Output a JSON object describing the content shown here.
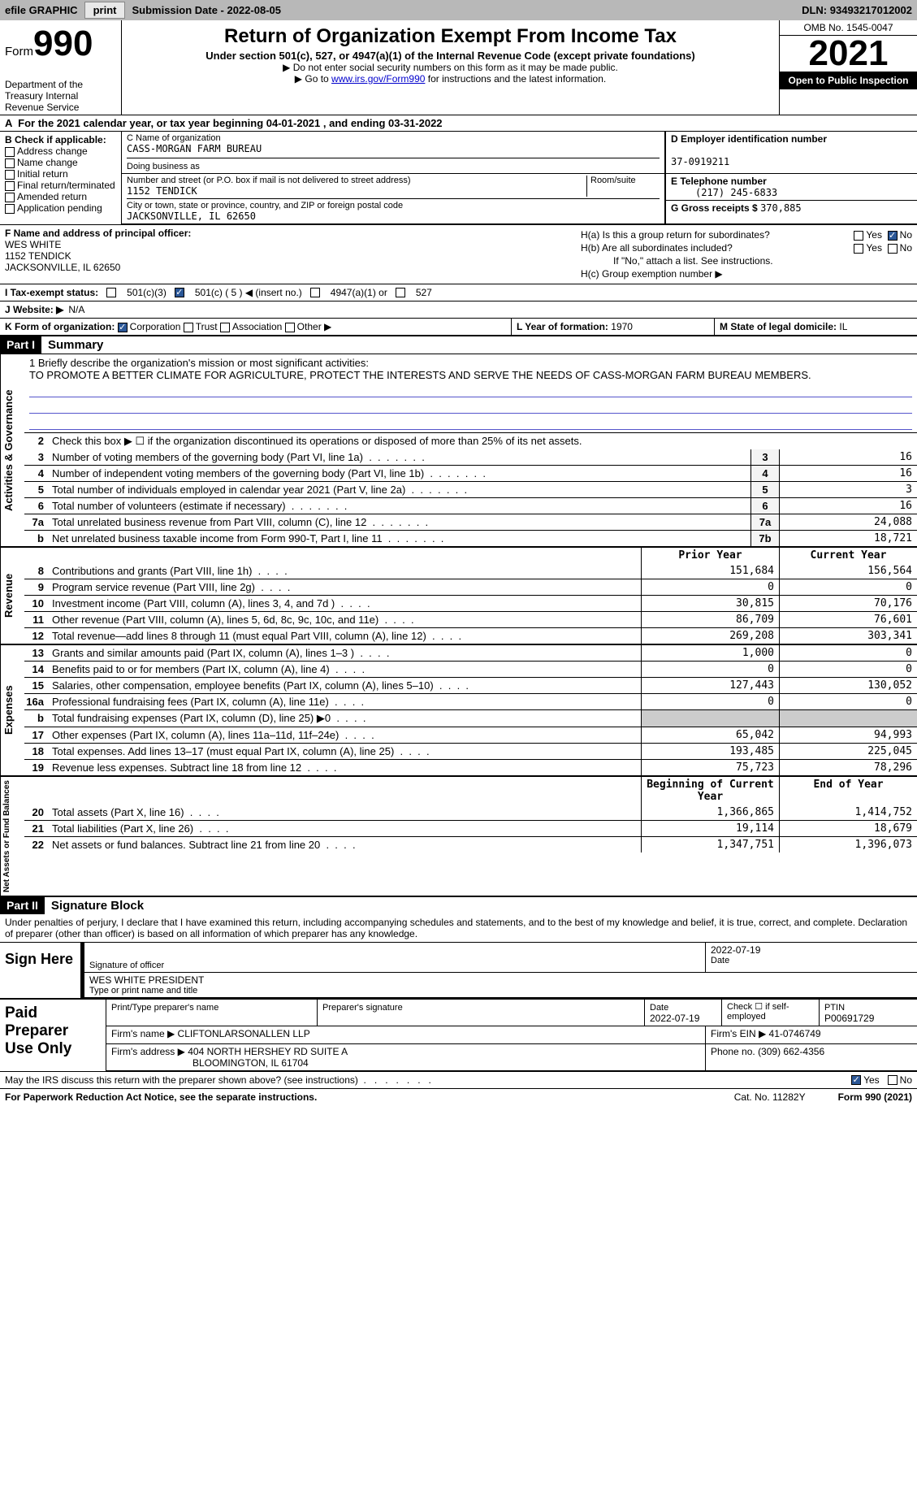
{
  "topbar": {
    "efile": "efile GRAPHIC",
    "print": "print",
    "submission_label": "Submission Date -",
    "submission_date": "2022-08-05",
    "dln_label": "DLN:",
    "dln": "93493217012002"
  },
  "header": {
    "form_word": "Form",
    "form_number": "990",
    "dept": "Department of the Treasury\nInternal Revenue Service",
    "title": "Return of Organization Exempt From Income Tax",
    "subtitle": "Under section 501(c), 527, or 4947(a)(1) of the Internal Revenue Code (except private foundations)",
    "note1": "▶ Do not enter social security numbers on this form as it may be made public.",
    "note2_pre": "▶ Go to ",
    "note2_link": "www.irs.gov/Form990",
    "note2_post": " for instructions and the latest information.",
    "omb": "OMB No. 1545-0047",
    "year": "2021",
    "inspect": "Open to Public Inspection"
  },
  "period": "For the 2021 calendar year, or tax year beginning 04-01-2021    , and ending 03-31-2022",
  "box_b": {
    "label": "B Check if applicable:",
    "items": [
      "Address change",
      "Name change",
      "Initial return",
      "Final return/terminated",
      "Amended return",
      "Application pending"
    ]
  },
  "box_c": {
    "name_label": "C Name of organization",
    "name": "CASS-MORGAN FARM BUREAU",
    "dba_label": "Doing business as",
    "dba": "",
    "street_label": "Number and street (or P.O. box if mail is not delivered to street address)",
    "room_label": "Room/suite",
    "street": "1152 TENDICK",
    "city_label": "City or town, state or province, country, and ZIP or foreign postal code",
    "city": "JACKSONVILLE, IL   62650"
  },
  "box_d": {
    "label": "D Employer identification number",
    "value": "37-0919211"
  },
  "box_e": {
    "label": "E Telephone number",
    "value": "(217) 245-6833"
  },
  "box_g": {
    "label": "G Gross receipts $",
    "value": "370,885"
  },
  "box_f": {
    "label": "F  Name and address of principal officer:",
    "name": "WES WHITE",
    "street": "1152 TENDICK",
    "city": "JACKSONVILLE, IL   62650"
  },
  "box_h": {
    "a_label": "H(a)  Is this a group return for subordinates?",
    "a_yes": false,
    "a_no": true,
    "b_label": "H(b)  Are all subordinates included?",
    "b_note": "If \"No,\" attach a list. See instructions.",
    "c_label": "H(c)  Group exemption number ▶"
  },
  "row_i": {
    "label": "I   Tax-exempt status:",
    "opts": [
      "501(c)(3)",
      "501(c) ( 5 ) ◀ (insert no.)",
      "4947(a)(1) or",
      "527"
    ],
    "checked": 1
  },
  "row_j": {
    "label": "J   Website: ▶",
    "value": "N/A"
  },
  "row_k": {
    "k_label": "K Form of organization:",
    "opts": [
      "Corporation",
      "Trust",
      "Association",
      "Other ▶"
    ],
    "checked": 0,
    "l_label": "L Year of formation:",
    "l_value": "1970",
    "m_label": "M State of legal domicile:",
    "m_value": "IL"
  },
  "part1": {
    "num": "Part I",
    "title": "Summary"
  },
  "mission": {
    "q": "1   Briefly describe the organization's mission or most significant activities:",
    "text": "TO PROMOTE A BETTER CLIMATE FOR AGRICULTURE, PROTECT THE INTERESTS AND SERVE THE NEEDS OF CASS-MORGAN FARM BUREAU MEMBERS."
  },
  "line2": "Check this box ▶ ☐  if the organization discontinued its operations or disposed of more than 25% of its net assets.",
  "governance": [
    {
      "n": "3",
      "d": "Number of voting members of the governing body (Part VI, line 1a)",
      "c": "3",
      "v": "16"
    },
    {
      "n": "4",
      "d": "Number of independent voting members of the governing body (Part VI, line 1b)",
      "c": "4",
      "v": "16"
    },
    {
      "n": "5",
      "d": "Total number of individuals employed in calendar year 2021 (Part V, line 2a)",
      "c": "5",
      "v": "3"
    },
    {
      "n": "6",
      "d": "Total number of volunteers (estimate if necessary)",
      "c": "6",
      "v": "16"
    },
    {
      "n": "7a",
      "d": "Total unrelated business revenue from Part VIII, column (C), line 12",
      "c": "7a",
      "v": "24,088"
    },
    {
      "n": "b",
      "d": "Net unrelated business taxable income from Form 990-T, Part I, line 11",
      "c": "7b",
      "v": "18,721"
    }
  ],
  "revenue_hdr": {
    "prior": "Prior Year",
    "current": "Current Year"
  },
  "revenue": [
    {
      "n": "8",
      "d": "Contributions and grants (Part VIII, line 1h)",
      "p": "151,684",
      "v": "156,564"
    },
    {
      "n": "9",
      "d": "Program service revenue (Part VIII, line 2g)",
      "p": "0",
      "v": "0"
    },
    {
      "n": "10",
      "d": "Investment income (Part VIII, column (A), lines 3, 4, and 7d )",
      "p": "30,815",
      "v": "70,176"
    },
    {
      "n": "11",
      "d": "Other revenue (Part VIII, column (A), lines 5, 6d, 8c, 9c, 10c, and 11e)",
      "p": "86,709",
      "v": "76,601"
    },
    {
      "n": "12",
      "d": "Total revenue—add lines 8 through 11 (must equal Part VIII, column (A), line 12)",
      "p": "269,208",
      "v": "303,341"
    }
  ],
  "expenses": [
    {
      "n": "13",
      "d": "Grants and similar amounts paid (Part IX, column (A), lines 1–3 )",
      "p": "1,000",
      "v": "0"
    },
    {
      "n": "14",
      "d": "Benefits paid to or for members (Part IX, column (A), line 4)",
      "p": "0",
      "v": "0"
    },
    {
      "n": "15",
      "d": "Salaries, other compensation, employee benefits (Part IX, column (A), lines 5–10)",
      "p": "127,443",
      "v": "130,052"
    },
    {
      "n": "16a",
      "d": "Professional fundraising fees (Part IX, column (A), line 11e)",
      "p": "0",
      "v": "0"
    },
    {
      "n": "b",
      "d": "Total fundraising expenses (Part IX, column (D), line 25) ▶0",
      "p": "SHADE",
      "v": "SHADE"
    },
    {
      "n": "17",
      "d": "Other expenses (Part IX, column (A), lines 11a–11d, 11f–24e)",
      "p": "65,042",
      "v": "94,993"
    },
    {
      "n": "18",
      "d": "Total expenses. Add lines 13–17 (must equal Part IX, column (A), line 25)",
      "p": "193,485",
      "v": "225,045"
    },
    {
      "n": "19",
      "d": "Revenue less expenses. Subtract line 18 from line 12",
      "p": "75,723",
      "v": "78,296"
    }
  ],
  "netassets_hdr": {
    "prior": "Beginning of Current Year",
    "current": "End of Year"
  },
  "netassets": [
    {
      "n": "20",
      "d": "Total assets (Part X, line 16)",
      "p": "1,366,865",
      "v": "1,414,752"
    },
    {
      "n": "21",
      "d": "Total liabilities (Part X, line 26)",
      "p": "19,114",
      "v": "18,679"
    },
    {
      "n": "22",
      "d": "Net assets or fund balances. Subtract line 21 from line 20",
      "p": "1,347,751",
      "v": "1,396,073"
    }
  ],
  "vlabels": {
    "gov": "Activities & Governance",
    "rev": "Revenue",
    "exp": "Expenses",
    "net": "Net Assets or Fund Balances"
  },
  "part2": {
    "num": "Part II",
    "title": "Signature Block"
  },
  "decl": "Under penalties of perjury, I declare that I have examined this return, including accompanying schedules and statements, and to the best of my knowledge and belief, it is true, correct, and complete. Declaration of preparer (other than officer) is based on all information of which preparer has any knowledge.",
  "sign": {
    "here": "Sign Here",
    "sig_label": "Signature of officer",
    "date_label": "Date",
    "date": "2022-07-19",
    "name_label": "Type or print name and title",
    "name": "WES WHITE  PRESIDENT"
  },
  "paid": {
    "label": "Paid Preparer Use Only",
    "name_label": "Print/Type preparer's name",
    "sig_label": "Preparer's signature",
    "date_label": "Date",
    "date": "2022-07-19",
    "check_label": "Check ☐ if self-employed",
    "ptin_label": "PTIN",
    "ptin": "P00691729",
    "firm_name_label": "Firm's name      ▶",
    "firm_name": "CLIFTONLARSONALLEN LLP",
    "firm_ein_label": "Firm's EIN ▶",
    "firm_ein": "41-0746749",
    "firm_addr_label": "Firm's address ▶",
    "firm_addr1": "404 NORTH HERSHEY RD SUITE A",
    "firm_addr2": "BLOOMINGTON, IL   61704",
    "phone_label": "Phone no.",
    "phone": "(309) 662-4356"
  },
  "discuss": {
    "q": "May the IRS discuss this return with the preparer shown above? (see instructions)",
    "yes": true
  },
  "footer": {
    "pra": "For Paperwork Reduction Act Notice, see the separate instructions.",
    "cat": "Cat. No. 11282Y",
    "form": "Form 990 (2021)"
  }
}
